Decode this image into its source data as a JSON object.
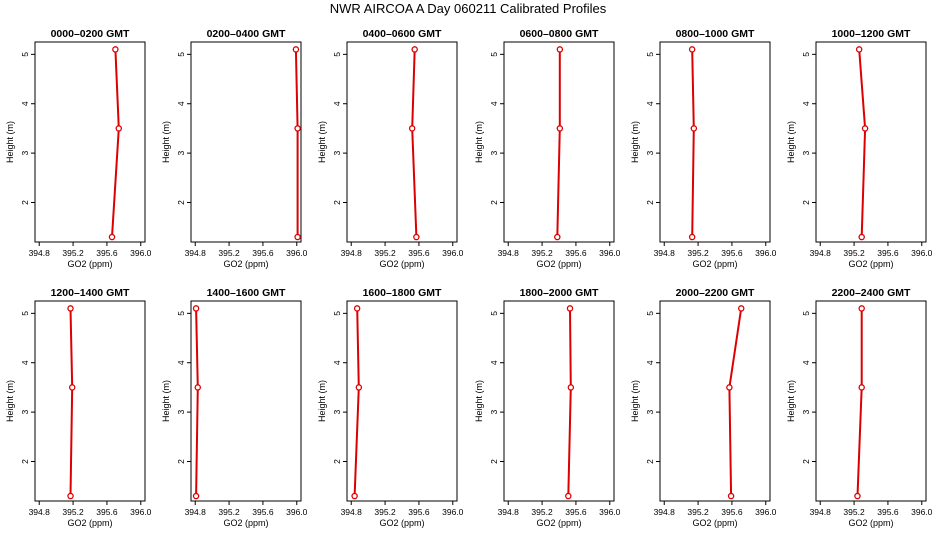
{
  "title": "NWR AIRCOA A  Day 060211  Calibrated Profiles",
  "chart_data": {
    "type": "line",
    "xlabel": "GO2 (ppm)",
    "ylabel": "Height (m)",
    "xlim": [
      394.75,
      396.05
    ],
    "ylim": [
      1.2,
      5.25
    ],
    "xticks": [
      "394.8",
      "395.2",
      "395.6",
      "396.0"
    ],
    "yticks": [
      "2",
      "3",
      "4",
      "5"
    ],
    "line_color": "#dd0000",
    "panels": [
      {
        "title": "0000–0200 GMT",
        "points": [
          {
            "x": 395.66,
            "y": 1.3
          },
          {
            "x": 395.74,
            "y": 3.5
          },
          {
            "x": 395.7,
            "y": 5.1
          }
        ]
      },
      {
        "title": "0200–0400 GMT",
        "points": [
          {
            "x": 396.01,
            "y": 1.3
          },
          {
            "x": 396.01,
            "y": 3.5
          },
          {
            "x": 395.99,
            "y": 5.1
          }
        ]
      },
      {
        "title": "0400–0600 GMT",
        "points": [
          {
            "x": 395.57,
            "y": 1.3
          },
          {
            "x": 395.52,
            "y": 3.5
          },
          {
            "x": 395.55,
            "y": 5.1
          }
        ]
      },
      {
        "title": "0600–0800 GMT",
        "points": [
          {
            "x": 395.38,
            "y": 1.3
          },
          {
            "x": 395.41,
            "y": 3.5
          },
          {
            "x": 395.41,
            "y": 5.1
          }
        ]
      },
      {
        "title": "0800–1000 GMT",
        "points": [
          {
            "x": 395.13,
            "y": 1.3
          },
          {
            "x": 395.15,
            "y": 3.5
          },
          {
            "x": 395.13,
            "y": 5.1
          }
        ]
      },
      {
        "title": "1000–1200 GMT",
        "points": [
          {
            "x": 395.29,
            "y": 1.3
          },
          {
            "x": 395.33,
            "y": 3.5
          },
          {
            "x": 395.26,
            "y": 5.1
          }
        ]
      },
      {
        "title": "1200–1400 GMT",
        "points": [
          {
            "x": 395.17,
            "y": 1.3
          },
          {
            "x": 395.19,
            "y": 3.5
          },
          {
            "x": 395.17,
            "y": 5.1
          }
        ]
      },
      {
        "title": "1400–1600 GMT",
        "points": [
          {
            "x": 394.81,
            "y": 1.3
          },
          {
            "x": 394.83,
            "y": 3.5
          },
          {
            "x": 394.81,
            "y": 5.1
          }
        ]
      },
      {
        "title": "1600–1800 GMT",
        "points": [
          {
            "x": 394.84,
            "y": 1.3
          },
          {
            "x": 394.89,
            "y": 3.5
          },
          {
            "x": 394.87,
            "y": 5.1
          }
        ]
      },
      {
        "title": "1800–2000 GMT",
        "points": [
          {
            "x": 395.51,
            "y": 1.3
          },
          {
            "x": 395.54,
            "y": 3.5
          },
          {
            "x": 395.53,
            "y": 5.1
          }
        ]
      },
      {
        "title": "2000–2200 GMT",
        "points": [
          {
            "x": 395.59,
            "y": 1.3
          },
          {
            "x": 395.57,
            "y": 3.5
          },
          {
            "x": 395.71,
            "y": 5.1
          }
        ]
      },
      {
        "title": "2200–2400 GMT",
        "points": [
          {
            "x": 395.24,
            "y": 1.3
          },
          {
            "x": 395.29,
            "y": 3.5
          },
          {
            "x": 395.29,
            "y": 5.1
          }
        ]
      }
    ]
  }
}
